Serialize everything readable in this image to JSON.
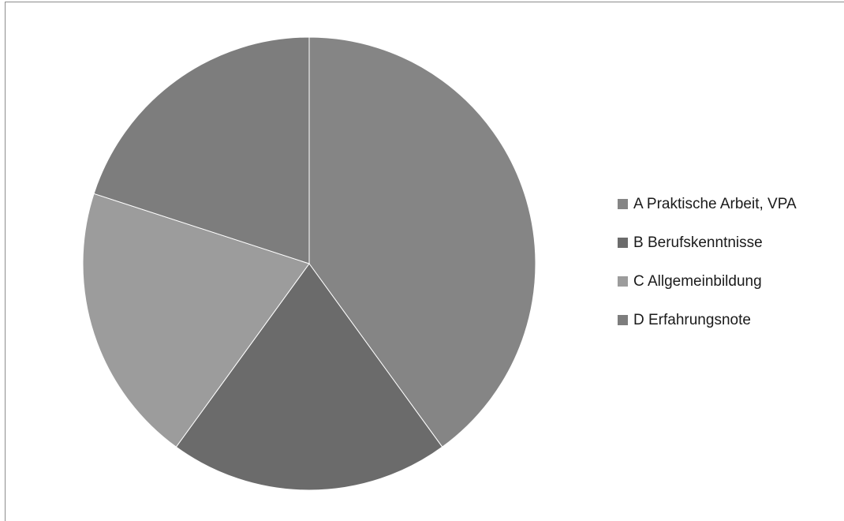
{
  "chart_data": {
    "type": "pie",
    "categories": [
      "A Praktische Arbeit, VPA",
      "B Berufskenntnisse",
      "C Allgemeinbildung",
      "D Erfahrungsnote"
    ],
    "values": [
      40,
      20,
      20,
      20
    ],
    "colors": [
      "#858585",
      "#6b6b6b",
      "#9c9c9c",
      "#7d7d7d"
    ],
    "start_angle_deg": 0,
    "direction": "clockwise",
    "legend_position": "right"
  }
}
